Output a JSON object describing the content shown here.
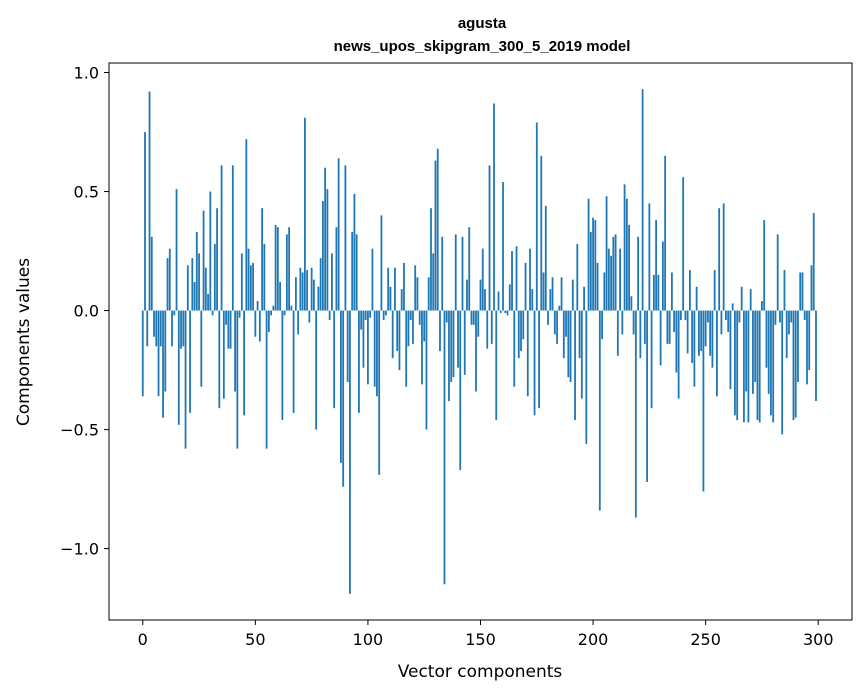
{
  "chart_data": {
    "type": "bar",
    "title": "agusta",
    "subtitle": "news_upos_skipgram_300_5_2019 model",
    "xlabel": "Vector components",
    "ylabel": "Components values",
    "xlim": [
      -15,
      315
    ],
    "ylim": [
      -1.3,
      1.04
    ],
    "xticks": [
      0,
      50,
      100,
      150,
      200,
      250,
      300
    ],
    "xtick_labels": [
      "0",
      "50",
      "100",
      "150",
      "200",
      "250",
      "300"
    ],
    "yticks": [
      -1.0,
      -0.5,
      0.0,
      0.5,
      1.0
    ],
    "ytick_labels": [
      "−1.0",
      "−0.5",
      "0.0",
      "0.5",
      "1.0"
    ],
    "bar_color": "#1f77b4",
    "grid": false,
    "values": [
      -0.36,
      0.75,
      -0.15,
      0.92,
      0.31,
      -0.11,
      -0.15,
      -0.36,
      -0.15,
      -0.45,
      -0.34,
      0.22,
      0.26,
      -0.15,
      -0.02,
      0.51,
      -0.48,
      -0.16,
      -0.15,
      -0.58,
      0.19,
      -0.43,
      0.22,
      0.12,
      0.33,
      0.24,
      -0.32,
      0.42,
      0.18,
      0.07,
      0.5,
      -0.02,
      0.28,
      0.43,
      -0.41,
      0.61,
      -0.37,
      -0.06,
      -0.16,
      -0.16,
      0.61,
      -0.34,
      -0.58,
      -0.03,
      0.24,
      -0.44,
      0.72,
      0.26,
      0.19,
      0.2,
      -0.11,
      0.04,
      -0.13,
      0.43,
      0.28,
      -0.58,
      -0.09,
      -0.02,
      0.02,
      0.36,
      0.35,
      0.12,
      -0.46,
      -0.02,
      0.32,
      0.35,
      0.02,
      -0.43,
      0.14,
      -0.1,
      0.18,
      0.16,
      0.81,
      0.17,
      -0.05,
      0.18,
      0.13,
      -0.5,
      0.1,
      0.22,
      0.46,
      0.6,
      0.51,
      -0.04,
      0.24,
      -0.41,
      0.35,
      0.64,
      -0.64,
      -0.74,
      0.61,
      -0.3,
      -1.19,
      0.33,
      0.49,
      0.32,
      -0.43,
      -0.08,
      -0.24,
      -0.04,
      -0.31,
      -0.03,
      0.26,
      -0.32,
      -0.36,
      -0.69,
      0.4,
      -0.04,
      -0.02,
      0.18,
      0.1,
      -0.2,
      0.18,
      -0.17,
      -0.25,
      0.09,
      0.2,
      -0.32,
      -0.15,
      -0.04,
      -0.14,
      0.19,
      0.14,
      -0.06,
      -0.31,
      -0.13,
      -0.5,
      0.14,
      0.43,
      0.24,
      0.63,
      0.68,
      -0.17,
      0.31,
      -1.15,
      -0.05,
      -0.38,
      -0.3,
      -0.28,
      0.32,
      -0.24,
      -0.67,
      0.31,
      -0.27,
      0.13,
      0.35,
      -0.06,
      -0.06,
      -0.34,
      -0.11,
      0.13,
      0.26,
      0.09,
      -0.16,
      0.61,
      -0.14,
      0.87,
      -0.46,
      0.08,
      -0.01,
      0.54,
      -0.01,
      -0.02,
      0.11,
      0.25,
      -0.32,
      0.27,
      -0.2,
      -0.17,
      -0.12,
      0.2,
      -0.36,
      0.26,
      0.09,
      -0.44,
      0.79,
      -0.41,
      0.65,
      0.16,
      0.44,
      -0.06,
      0.09,
      0.14,
      -0.1,
      -0.14,
      0.02,
      0.14,
      -0.2,
      -0.11,
      -0.28,
      -0.3,
      0.13,
      -0.46,
      0.28,
      -0.2,
      -0.37,
      0.1,
      -0.56,
      0.47,
      0.33,
      0.39,
      0.38,
      0.2,
      -0.84,
      -0.12,
      0.16,
      0.48,
      0.26,
      0.23,
      0.31,
      0.32,
      -0.19,
      0.26,
      -0.1,
      0.53,
      0.47,
      0.36,
      0.06,
      -0.1,
      -0.87,
      0.31,
      -0.2,
      0.93,
      -0.14,
      -0.72,
      0.45,
      -0.41,
      0.15,
      0.38,
      0.15,
      -0.23,
      0.29,
      0.65,
      -0.14,
      -0.14,
      0.16,
      -0.09,
      -0.26,
      -0.37,
      -0.04,
      0.56,
      -0.04,
      -0.18,
      0.17,
      -0.22,
      -0.32,
      0.1,
      -0.19,
      -0.17,
      -0.76,
      -0.15,
      -0.05,
      -0.19,
      -0.24,
      0.17,
      -0.36,
      0.43,
      -0.1,
      0.45,
      -0.04,
      -0.09,
      -0.33,
      0.03,
      -0.44,
      -0.46,
      -0.05,
      0.1,
      -0.47,
      -0.34,
      -0.47,
      0.09,
      -0.35,
      -0.3,
      -0.46,
      -0.47,
      0.04,
      0.38,
      -0.24,
      -0.35,
      -0.44,
      -0.47,
      -0.06,
      0.32,
      -0.05,
      -0.52,
      0.17,
      -0.2,
      -0.1,
      -0.05,
      -0.46,
      -0.45,
      -0.3,
      0.16,
      0.16,
      -0.04,
      -0.31,
      -0.25,
      0.19,
      0.41,
      -0.38
    ]
  }
}
